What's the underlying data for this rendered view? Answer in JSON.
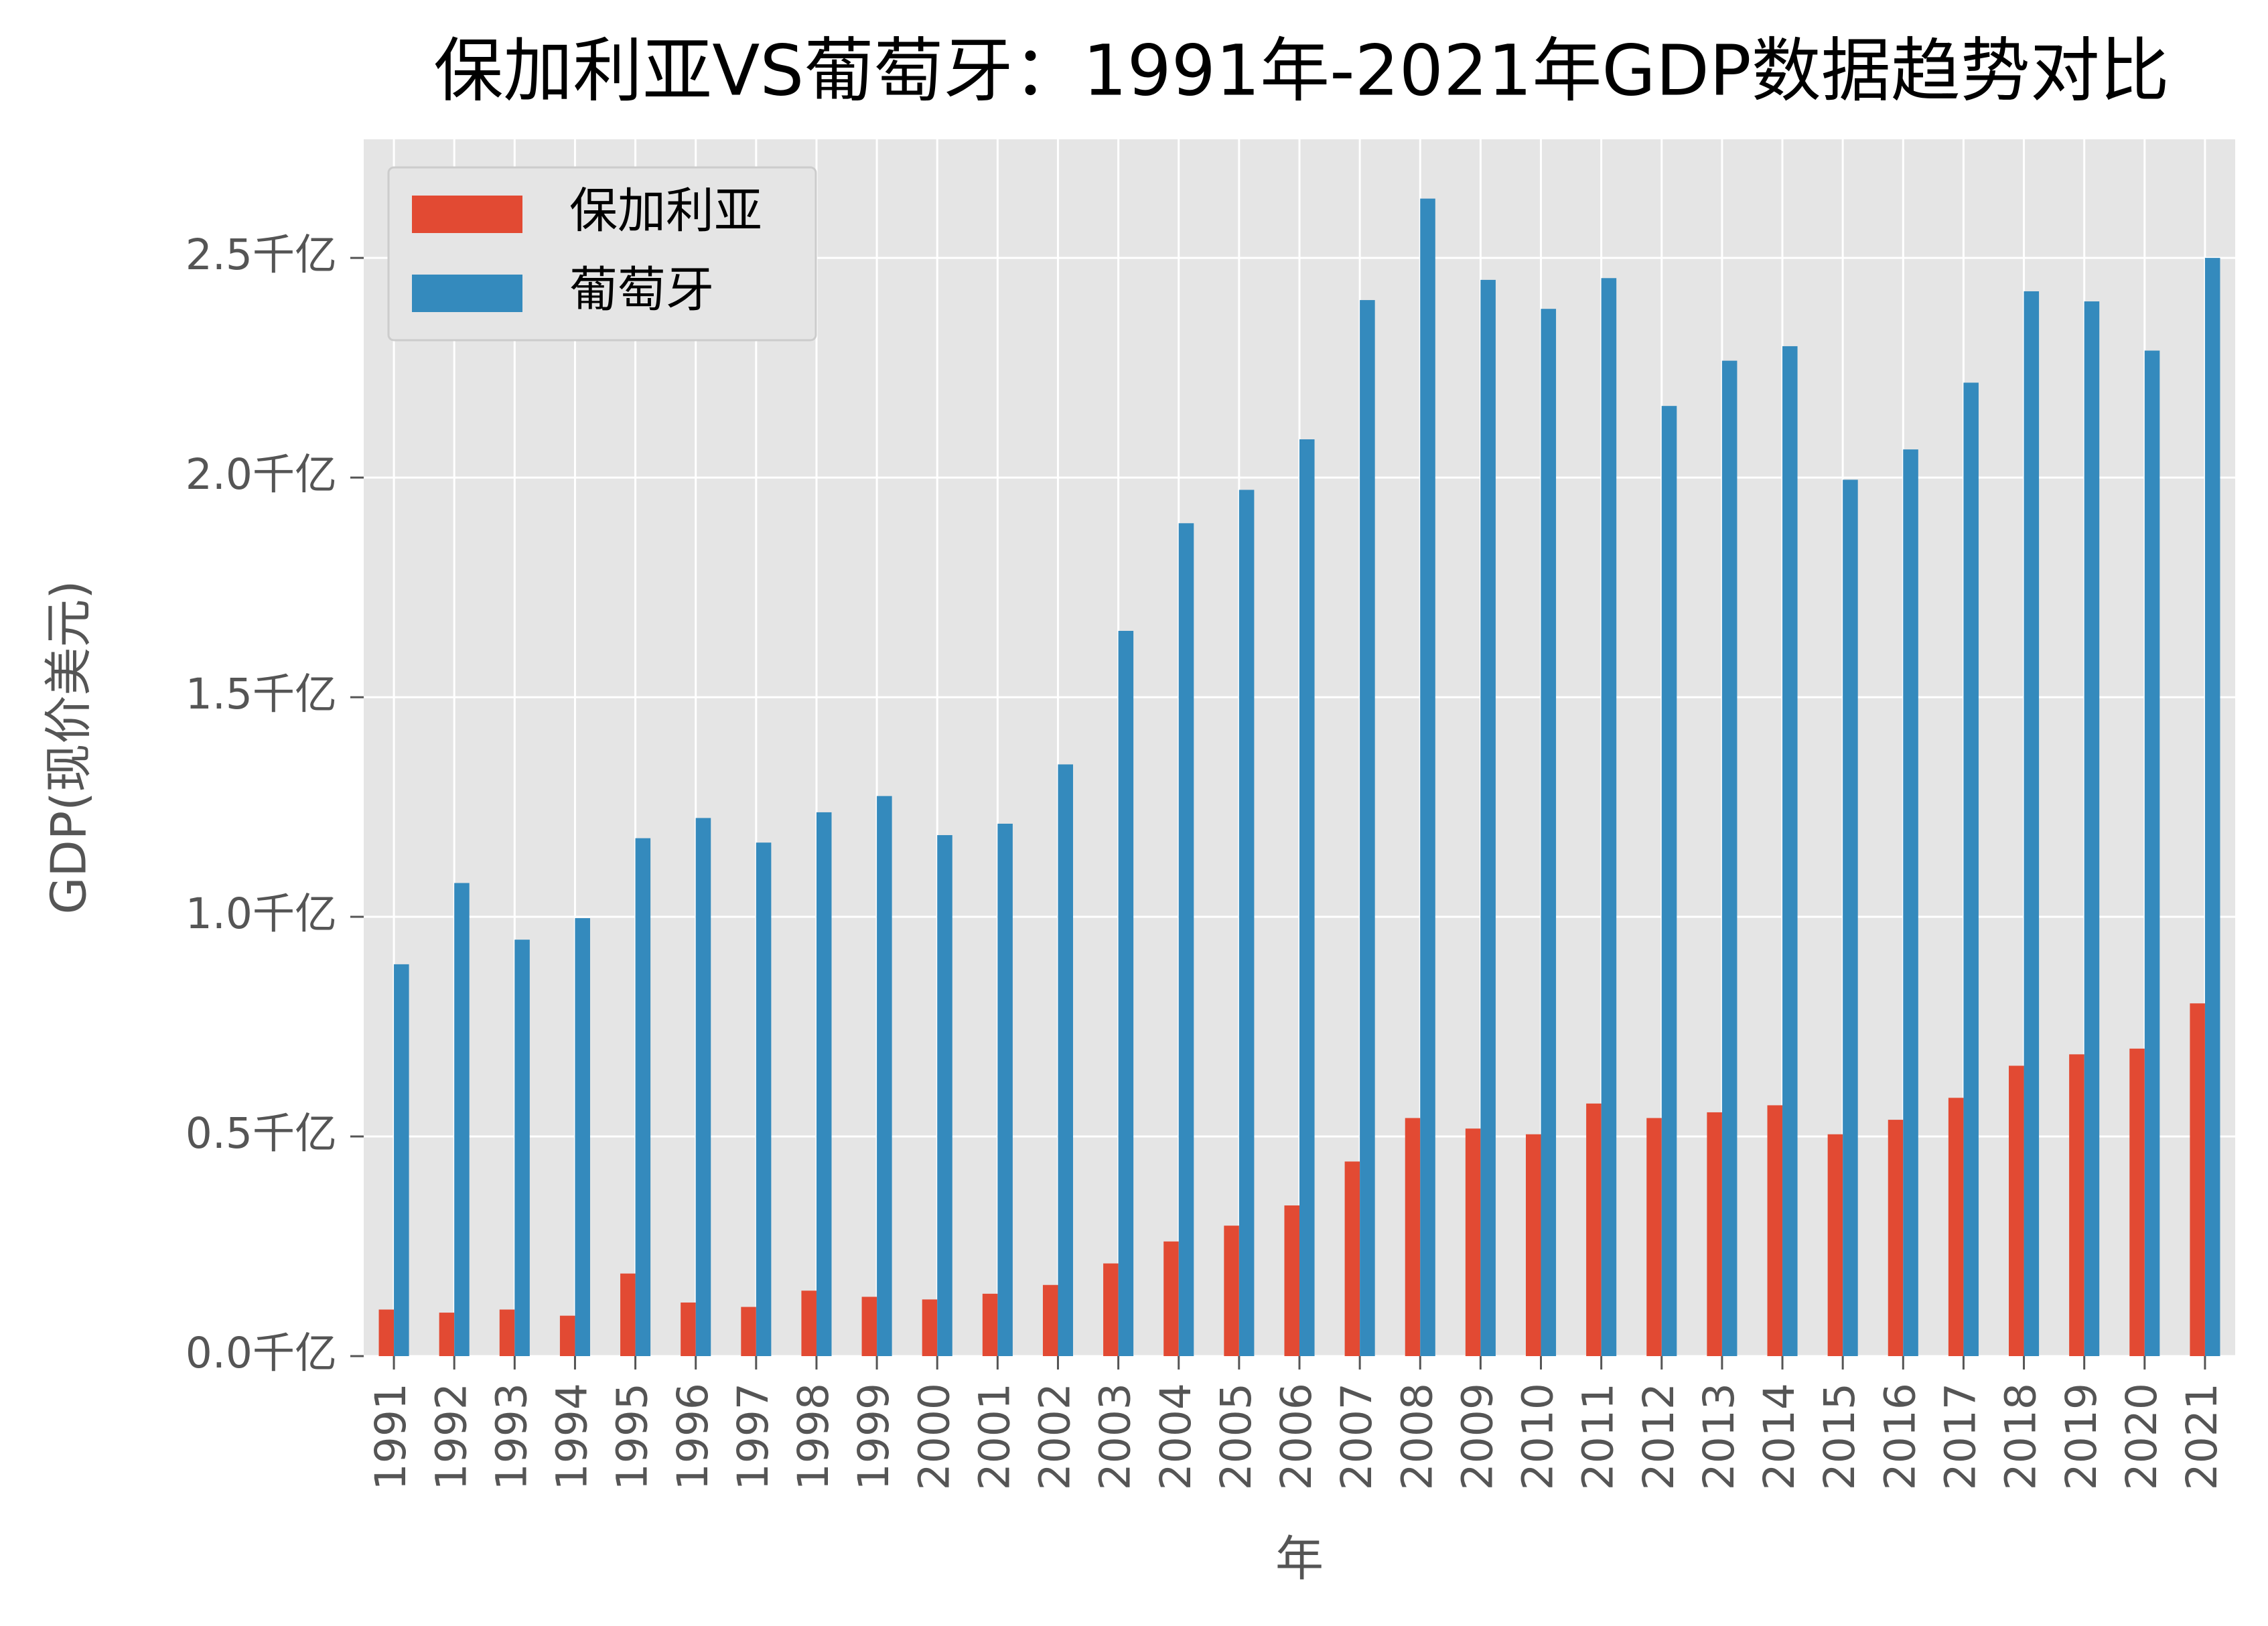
{
  "chart_data": {
    "type": "bar",
    "title": "保加利亚VS葡萄牙：1991年-2021年GDP数据趋势对比",
    "x_label": "年",
    "y_label": "GDP(现价美元)",
    "categories": [
      "1991",
      "1992",
      "1993",
      "1994",
      "1995",
      "1996",
      "1997",
      "1998",
      "1999",
      "2000",
      "2001",
      "2002",
      "2003",
      "2004",
      "2005",
      "2006",
      "2007",
      "2008",
      "2009",
      "2010",
      "2011",
      "2012",
      "2013",
      "2014",
      "2015",
      "2016",
      "2017",
      "2018",
      "2019",
      "2020",
      "2021"
    ],
    "series": [
      {
        "name": "保加利亚",
        "color": "#e24a33",
        "values": [
          0.106,
          0.099,
          0.106,
          0.092,
          0.188,
          0.122,
          0.112,
          0.149,
          0.135,
          0.129,
          0.142,
          0.162,
          0.211,
          0.261,
          0.297,
          0.343,
          0.443,
          0.542,
          0.518,
          0.505,
          0.575,
          0.542,
          0.555,
          0.571,
          0.505,
          0.538,
          0.588,
          0.661,
          0.687,
          0.7,
          0.803
        ]
      },
      {
        "name": "葡萄牙",
        "color": "#348abd",
        "values": [
          0.892,
          1.077,
          0.948,
          0.997,
          1.179,
          1.225,
          1.169,
          1.238,
          1.275,
          1.186,
          1.212,
          1.347,
          1.651,
          1.896,
          1.972,
          2.087,
          2.404,
          2.635,
          2.45,
          2.384,
          2.454,
          2.163,
          2.266,
          2.299,
          1.995,
          2.064,
          2.216,
          2.424,
          2.401,
          2.289,
          2.5
        ]
      }
    ],
    "ylim": [
      0,
      2.77
    ],
    "yticks": [
      {
        "value": 0,
        "label": "0.0千亿"
      },
      {
        "value": 0.5,
        "label": "0.5千亿"
      },
      {
        "value": 1,
        "label": "1.0千亿"
      },
      {
        "value": 1.5,
        "label": "1.5千亿"
      },
      {
        "value": 2,
        "label": "2.0千亿"
      },
      {
        "value": 2.5,
        "label": "2.5千亿"
      }
    ],
    "grid": true,
    "legend": "upper left"
  }
}
